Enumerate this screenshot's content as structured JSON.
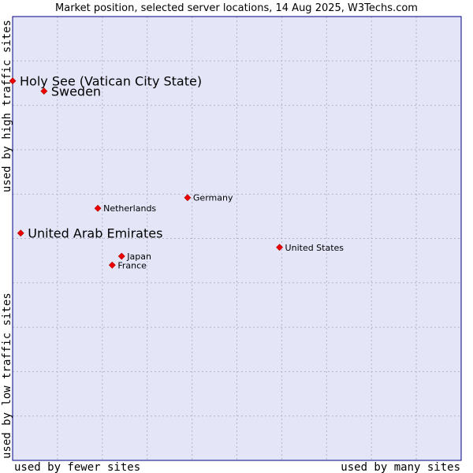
{
  "chart_data": {
    "type": "scatter",
    "title": "Market position, selected server locations, 14 Aug 2025, W3Techs.com",
    "xlabel_left": "used by fewer sites",
    "xlabel_right": "used by many sites",
    "ylabel_bottom": "used by low traffic sites",
    "ylabel_top": "used by high traffic sites",
    "xlim": [
      0,
      10
    ],
    "ylim": [
      0,
      10
    ],
    "grid": true,
    "colors": {
      "background": "#e4e6f8",
      "grid": "#b4b4c8",
      "border": "#000080",
      "marker": "#ee0000"
    },
    "points": [
      {
        "label": "Holy See (Vatican City State)",
        "x": 0.0,
        "y": 8.55,
        "size": "large"
      },
      {
        "label": "Sweden",
        "x": 0.7,
        "y": 8.32,
        "size": "large"
      },
      {
        "label": "Germany",
        "x": 3.9,
        "y": 5.92,
        "size": "small"
      },
      {
        "label": "Netherlands",
        "x": 1.9,
        "y": 5.68,
        "size": "small"
      },
      {
        "label": "United Arab Emirates",
        "x": 0.18,
        "y": 5.12,
        "size": "large"
      },
      {
        "label": "United States",
        "x": 5.95,
        "y": 4.8,
        "size": "small"
      },
      {
        "label": "Japan",
        "x": 2.43,
        "y": 4.6,
        "size": "small"
      },
      {
        "label": "France",
        "x": 2.22,
        "y": 4.4,
        "size": "small"
      }
    ]
  }
}
